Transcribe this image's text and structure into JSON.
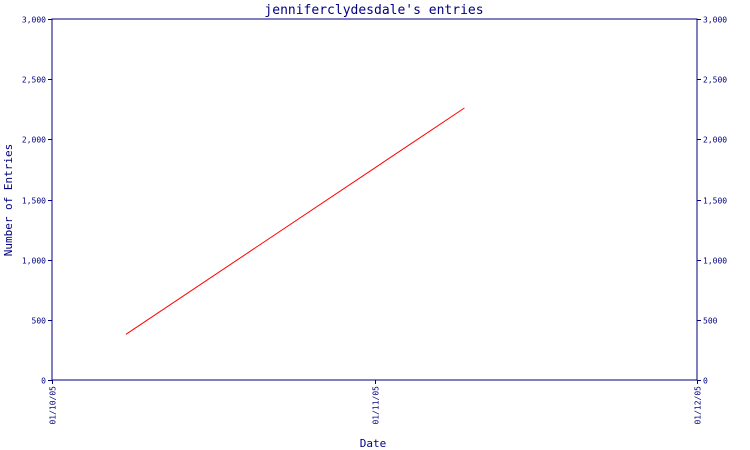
{
  "chart_data": {
    "type": "line",
    "title": "jenniferclydesdale's entries",
    "xlabel": "Date",
    "ylabel": "Number of Entries",
    "x_ticks": [
      "01/10/05",
      "01/11/05",
      "01/12/05"
    ],
    "x_range": [
      "2005-10-01",
      "2005-12-01"
    ],
    "ylim": [
      0,
      3000
    ],
    "y_ticks": [
      0,
      500,
      1000,
      1500,
      2000,
      2500,
      3000
    ],
    "y_tick_labels": [
      "0",
      "500",
      "1,000",
      "1,500",
      "2,000",
      "2,500",
      "3,000"
    ],
    "grid": false,
    "series": [
      {
        "color": "#ff0000",
        "points": [
          {
            "x": "2005-10-08",
            "y": 380
          },
          {
            "x": "2005-11-09",
            "y": 2260
          }
        ]
      }
    ]
  },
  "colors": {
    "axis": "#000080",
    "text": "#000080",
    "line": "#ff0000",
    "background": "#ffffff"
  }
}
